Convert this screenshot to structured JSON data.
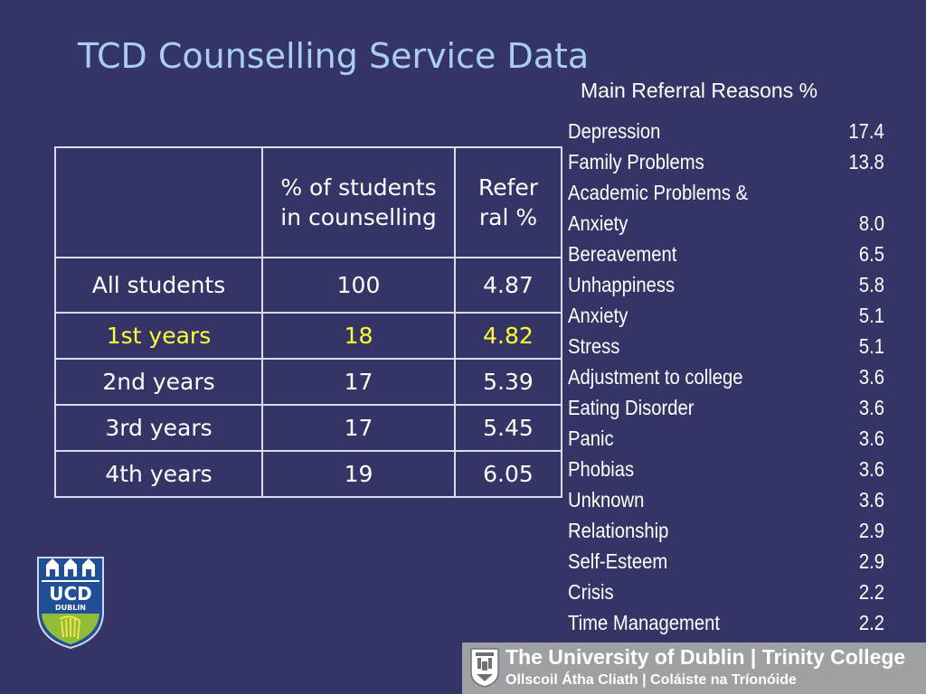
{
  "slide": {
    "title": "TCD Counselling Service Data"
  },
  "table": {
    "headers": [
      "",
      "% of students in counselling",
      "Refer ral %"
    ],
    "rows": [
      {
        "label": "All students",
        "pct_students": "100",
        "referral_pct": "4.87",
        "highlight": false
      },
      {
        "label": "1st years",
        "pct_students": "18",
        "referral_pct": "4.82",
        "highlight": true
      },
      {
        "label": "2nd years",
        "pct_students": "17",
        "referral_pct": "5.39",
        "highlight": false
      },
      {
        "label": "3rd years",
        "pct_students": "17",
        "referral_pct": "5.45",
        "highlight": false
      },
      {
        "label": "4th years",
        "pct_students": "19",
        "referral_pct": "6.05",
        "highlight": false
      }
    ],
    "highlight_color": "#ffff33"
  },
  "referrals": {
    "heading": "Main Referral Reasons %",
    "items": [
      {
        "reason": "Depression",
        "pct": "17.4"
      },
      {
        "reason": "Family Problems",
        "pct": "13.8"
      },
      {
        "reason": "Academic Problems & Anxiety",
        "pct": "8.0"
      },
      {
        "reason": "Bereavement",
        "pct": "6.5"
      },
      {
        "reason": "Unhappiness",
        "pct": "5.8"
      },
      {
        "reason": "Anxiety",
        "pct": "5.1"
      },
      {
        "reason": "Stress",
        "pct": "5.1"
      },
      {
        "reason": "Adjustment to college",
        "pct": "3.6"
      },
      {
        "reason": "Eating Disorder",
        "pct": "3.6"
      },
      {
        "reason": "Panic",
        "pct": "3.6"
      },
      {
        "reason": "Phobias",
        "pct": "3.6"
      },
      {
        "reason": "Unknown",
        "pct": "3.6"
      },
      {
        "reason": "Relationship",
        "pct": "2.9"
      },
      {
        "reason": "Self-Esteem",
        "pct": "2.9"
      },
      {
        "reason": "Crisis",
        "pct": "2.2"
      },
      {
        "reason": "Time Management",
        "pct": "2.2"
      }
    ]
  },
  "ucd_logo": {
    "text_main": "UCD",
    "text_sub": "DUBLIN",
    "icon": "ucd-crest-icon"
  },
  "tcd_banner": {
    "line1": "The University of Dublin | Trinity College",
    "line2": "Ollscoil Átha Cliath | Coláiste na Tríonóide",
    "icon": "tcd-crest-icon"
  },
  "colors": {
    "background": "#353466",
    "title": "#a9cef2",
    "banner": "#9fa0a4"
  }
}
